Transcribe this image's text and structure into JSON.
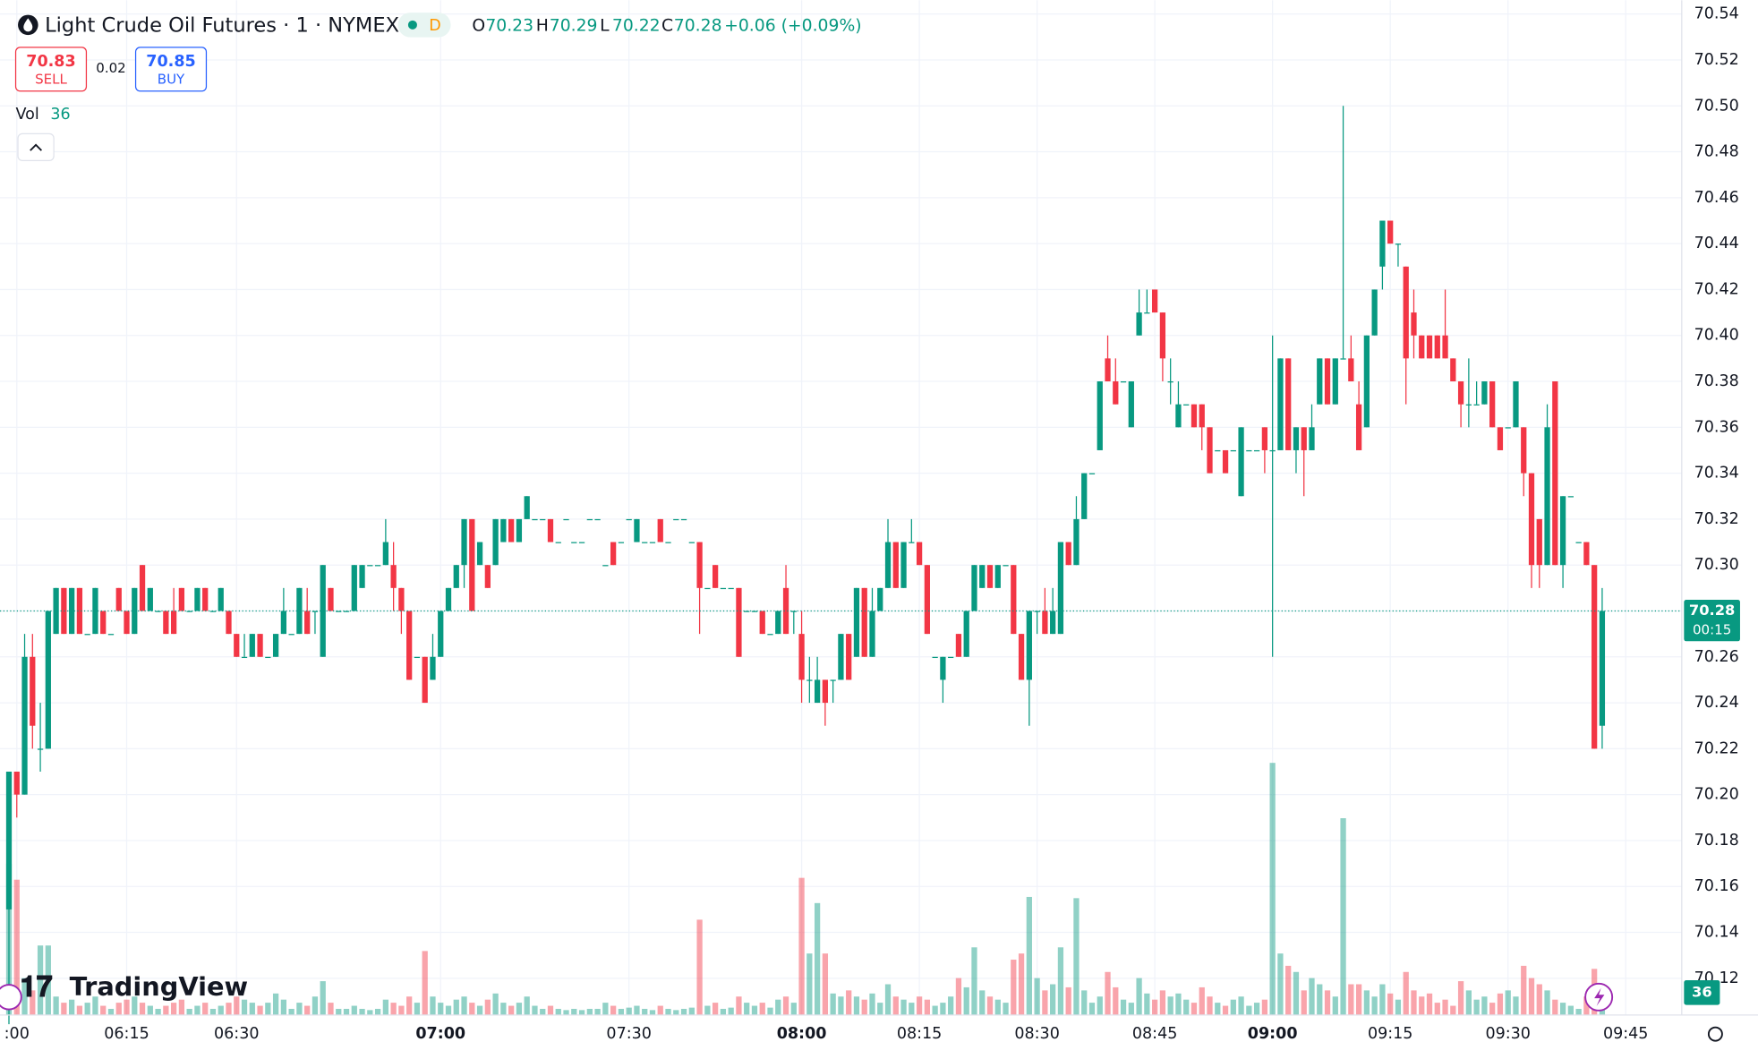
{
  "header": {
    "title": "Light Crude Oil Futures · 1 · NYMEX",
    "interval_badge": "D",
    "legend_labels": [
      "O",
      "H",
      "L",
      "C"
    ],
    "legend_values": [
      70.23,
      70.29,
      70.22,
      70.28
    ],
    "change": "+0.06 (+0.09%)",
    "sell_price": 70.83,
    "sell_label": "SELL",
    "spread": 0.02,
    "buy_price": 70.85,
    "buy_label": "BUY",
    "volume_label": "Vol",
    "countdown": "00:15",
    "logo": "TradingView"
  },
  "chart_data": {
    "type": "candlestick",
    "up_color": "#089981",
    "down_color": "#f23645",
    "grid": true,
    "ylim": [
      70.104,
      70.546
    ],
    "yticks": [
      70.54,
      70.52,
      {
        "value": 70.5,
        "label": "70.50"
      },
      70.48,
      70.46,
      70.44,
      70.42,
      {
        "value": 70.4,
        "label": "70.40"
      },
      70.38,
      70.36,
      70.34,
      70.32,
      {
        "value": 70.3,
        "label": "70.30"
      },
      70.28,
      70.26,
      70.24,
      70.22,
      {
        "value": 70.2,
        "label": "70.20"
      },
      70.18,
      70.16,
      70.14,
      70.12
    ],
    "xlim": [
      -1.14,
      213.14
    ],
    "xticks": [
      {
        "value": 1,
        "label": ":00"
      },
      {
        "value": 15,
        "label": "06:15"
      },
      {
        "value": 29,
        "label": "06:30"
      },
      {
        "value": 55,
        "label": "07:00"
      },
      {
        "value": 79,
        "label": "07:30"
      },
      {
        "value": 101,
        "label": "08:00"
      },
      {
        "value": 116,
        "label": "08:15"
      },
      {
        "value": 131,
        "label": "08:30"
      },
      {
        "value": 146,
        "label": "08:45"
      },
      {
        "value": 161,
        "label": "09:00"
      },
      {
        "value": 176,
        "label": "09:15"
      },
      {
        "value": 191,
        "label": "09:30"
      },
      {
        "value": 206,
        "label": "09:45"
      }
    ],
    "volume_lim": [
      0,
      1650
    ],
    "ohlc": [
      [
        70.15,
        70.21,
        70.1,
        70.21
      ],
      [
        70.21,
        70.21,
        70.19,
        70.2
      ],
      [
        70.2,
        70.27,
        70.2,
        70.26
      ],
      [
        70.26,
        70.27,
        70.22,
        70.23
      ],
      [
        70.22,
        70.24,
        70.21,
        70.22
      ],
      [
        70.22,
        70.28,
        70.22,
        70.28
      ],
      [
        70.27,
        70.29,
        70.27,
        70.29
      ],
      [
        70.29,
        70.29,
        70.27,
        70.27
      ],
      [
        70.27,
        70.29,
        70.27,
        70.29
      ],
      [
        70.29,
        70.29,
        70.27,
        70.27
      ],
      [
        70.27,
        70.27,
        70.27,
        70.27
      ],
      [
        70.27,
        70.29,
        70.27,
        70.29
      ],
      [
        70.28,
        70.28,
        70.27,
        70.27
      ],
      [
        70.27,
        70.27,
        70.27,
        70.27
      ],
      [
        70.29,
        70.29,
        70.28,
        70.28
      ],
      [
        70.28,
        70.28,
        70.27,
        70.27
      ],
      [
        70.27,
        70.29,
        70.27,
        70.29
      ],
      [
        70.3,
        70.3,
        70.28,
        70.28
      ],
      [
        70.28,
        70.29,
        70.28,
        70.29
      ],
      [
        70.28,
        70.28,
        70.28,
        70.28
      ],
      [
        70.28,
        70.28,
        70.27,
        70.27
      ],
      [
        70.28,
        70.29,
        70.27,
        70.27
      ],
      [
        70.29,
        70.29,
        70.28,
        70.28
      ],
      [
        70.28,
        70.28,
        70.28,
        70.28
      ],
      [
        70.28,
        70.29,
        70.28,
        70.29
      ],
      [
        70.29,
        70.29,
        70.28,
        70.28
      ],
      [
        70.28,
        70.28,
        70.28,
        70.28
      ],
      [
        70.28,
        70.29,
        70.28,
        70.29
      ],
      [
        70.28,
        70.28,
        70.27,
        70.27
      ],
      [
        70.27,
        70.27,
        70.26,
        70.26
      ],
      [
        70.26,
        70.27,
        70.26,
        70.26
      ],
      [
        70.26,
        70.27,
        70.26,
        70.27
      ],
      [
        70.27,
        70.27,
        70.26,
        70.26
      ],
      [
        70.26,
        70.26,
        70.26,
        70.26
      ],
      [
        70.26,
        70.27,
        70.26,
        70.27
      ],
      [
        70.27,
        70.29,
        70.27,
        70.28
      ],
      [
        70.27,
        70.27,
        70.27,
        70.27
      ],
      [
        70.27,
        70.29,
        70.27,
        70.29
      ],
      [
        70.28,
        70.29,
        70.27,
        70.27
      ],
      [
        70.28,
        70.28,
        70.27,
        70.28
      ],
      [
        70.26,
        70.3,
        70.26,
        70.3
      ],
      [
        70.29,
        70.29,
        70.28,
        70.28
      ],
      [
        70.28,
        70.28,
        70.28,
        70.28
      ],
      [
        70.28,
        70.28,
        70.28,
        70.28
      ],
      [
        70.28,
        70.3,
        70.28,
        70.3
      ],
      [
        70.29,
        70.3,
        70.29,
        70.3
      ],
      [
        70.3,
        70.3,
        70.3,
        70.3
      ],
      [
        70.3,
        70.3,
        70.3,
        70.3
      ],
      [
        70.3,
        70.32,
        70.3,
        70.31
      ],
      [
        70.3,
        70.31,
        70.28,
        70.29
      ],
      [
        70.29,
        70.29,
        70.27,
        70.28
      ],
      [
        70.28,
        70.28,
        70.25,
        70.25
      ],
      [
        70.26,
        70.26,
        70.26,
        70.26
      ],
      [
        70.26,
        70.26,
        70.24,
        70.24
      ],
      [
        70.25,
        70.27,
        70.25,
        70.26
      ],
      [
        70.26,
        70.28,
        70.26,
        70.28
      ],
      [
        70.28,
        70.29,
        70.28,
        70.29
      ],
      [
        70.29,
        70.3,
        70.29,
        70.3
      ],
      [
        70.3,
        70.32,
        70.29,
        70.32
      ],
      [
        70.32,
        70.32,
        70.28,
        70.28
      ],
      [
        70.3,
        70.31,
        70.3,
        70.31
      ],
      [
        70.3,
        70.3,
        70.29,
        70.29
      ],
      [
        70.3,
        70.32,
        70.3,
        70.32
      ],
      [
        70.31,
        70.32,
        70.31,
        70.32
      ],
      [
        70.32,
        70.32,
        70.31,
        70.31
      ],
      [
        70.31,
        70.32,
        70.31,
        70.32
      ],
      [
        70.32,
        70.33,
        70.32,
        70.33
      ],
      [
        70.32,
        70.32,
        70.32,
        70.32
      ],
      [
        70.32,
        70.32,
        70.32,
        70.32
      ],
      [
        70.32,
        70.32,
        70.31,
        70.31
      ],
      [
        70.31,
        70.31,
        70.31,
        70.31
      ],
      [
        70.32,
        70.32,
        70.32,
        70.32
      ],
      [
        70.31,
        70.31,
        70.31,
        70.31
      ],
      [
        70.31,
        70.31,
        70.31,
        70.31
      ],
      [
        70.32,
        70.32,
        70.32,
        70.32
      ],
      [
        70.32,
        70.32,
        70.32,
        70.32
      ],
      [
        70.3,
        70.3,
        70.3,
        70.3
      ],
      [
        70.31,
        70.31,
        70.3,
        70.3
      ],
      [
        70.31,
        70.31,
        70.31,
        70.31
      ],
      [
        70.32,
        70.32,
        70.32,
        70.32
      ],
      [
        70.31,
        70.32,
        70.31,
        70.32
      ],
      [
        70.31,
        70.31,
        70.31,
        70.31
      ],
      [
        70.31,
        70.31,
        70.31,
        70.31
      ],
      [
        70.32,
        70.32,
        70.31,
        70.31
      ],
      [
        70.31,
        70.31,
        70.31,
        70.31
      ],
      [
        70.32,
        70.32,
        70.32,
        70.32
      ],
      [
        70.32,
        70.32,
        70.32,
        70.32
      ],
      [
        70.31,
        70.31,
        70.31,
        70.31
      ],
      [
        70.31,
        70.31,
        70.27,
        70.29
      ],
      [
        70.29,
        70.29,
        70.29,
        70.29
      ],
      [
        70.3,
        70.3,
        70.29,
        70.29
      ],
      [
        70.29,
        70.29,
        70.29,
        70.29
      ],
      [
        70.29,
        70.29,
        70.29,
        70.29
      ],
      [
        70.29,
        70.29,
        70.26,
        70.26
      ],
      [
        70.28,
        70.28,
        70.28,
        70.28
      ],
      [
        70.28,
        70.28,
        70.28,
        70.28
      ],
      [
        70.28,
        70.28,
        70.27,
        70.27
      ],
      [
        70.27,
        70.27,
        70.27,
        70.27
      ],
      [
        70.27,
        70.28,
        70.27,
        70.28
      ],
      [
        70.29,
        70.3,
        70.27,
        70.27
      ],
      [
        70.28,
        70.28,
        70.27,
        70.28
      ],
      [
        70.27,
        70.28,
        70.24,
        70.25
      ],
      [
        70.25,
        70.26,
        70.24,
        70.25
      ],
      [
        70.24,
        70.26,
        70.24,
        70.25
      ],
      [
        70.25,
        70.25,
        70.23,
        70.24
      ],
      [
        70.25,
        70.25,
        70.24,
        70.25
      ],
      [
        70.25,
        70.27,
        70.25,
        70.27
      ],
      [
        70.27,
        70.27,
        70.25,
        70.25
      ],
      [
        70.26,
        70.29,
        70.26,
        70.29
      ],
      [
        70.29,
        70.29,
        70.26,
        70.26
      ],
      [
        70.26,
        70.29,
        70.26,
        70.28
      ],
      [
        70.28,
        70.29,
        70.28,
        70.29
      ],
      [
        70.29,
        70.32,
        70.29,
        70.31
      ],
      [
        70.31,
        70.31,
        70.29,
        70.29
      ],
      [
        70.29,
        70.31,
        70.29,
        70.31
      ],
      [
        70.31,
        70.32,
        70.31,
        70.31
      ],
      [
        70.31,
        70.31,
        70.3,
        70.3
      ],
      [
        70.3,
        70.3,
        70.27,
        70.27
      ],
      [
        70.26,
        70.26,
        70.26,
        70.26
      ],
      [
        70.25,
        70.26,
        70.24,
        70.26
      ],
      [
        70.26,
        70.26,
        70.26,
        70.26
      ],
      [
        70.27,
        70.27,
        70.26,
        70.26
      ],
      [
        70.26,
        70.28,
        70.26,
        70.28
      ],
      [
        70.28,
        70.3,
        70.28,
        70.3
      ],
      [
        70.29,
        70.3,
        70.29,
        70.3
      ],
      [
        70.3,
        70.3,
        70.29,
        70.29
      ],
      [
        70.29,
        70.3,
        70.29,
        70.3
      ],
      [
        70.3,
        70.3,
        70.3,
        70.3
      ],
      [
        70.3,
        70.3,
        70.27,
        70.27
      ],
      [
        70.27,
        70.27,
        70.25,
        70.25
      ],
      [
        70.25,
        70.28,
        70.23,
        70.28
      ],
      [
        70.28,
        70.28,
        70.27,
        70.28
      ],
      [
        70.28,
        70.29,
        70.27,
        70.27
      ],
      [
        70.27,
        70.29,
        70.27,
        70.28
      ],
      [
        70.27,
        70.31,
        70.27,
        70.31
      ],
      [
        70.31,
        70.31,
        70.3,
        70.3
      ],
      [
        70.3,
        70.33,
        70.3,
        70.32
      ],
      [
        70.32,
        70.34,
        70.32,
        70.34
      ],
      [
        70.34,
        70.34,
        70.34,
        70.34
      ],
      [
        70.35,
        70.38,
        70.35,
        70.38
      ],
      [
        70.39,
        70.4,
        70.38,
        70.38
      ],
      [
        70.38,
        70.39,
        70.37,
        70.37
      ],
      [
        70.38,
        70.38,
        70.38,
        70.38
      ],
      [
        70.36,
        70.38,
        70.36,
        70.38
      ],
      [
        70.4,
        70.42,
        70.4,
        70.41
      ],
      [
        70.41,
        70.42,
        70.41,
        70.41
      ],
      [
        70.42,
        70.42,
        70.41,
        70.41
      ],
      [
        70.41,
        70.41,
        70.38,
        70.39
      ],
      [
        70.38,
        70.39,
        70.37,
        70.38
      ],
      [
        70.36,
        70.38,
        70.36,
        70.37
      ],
      [
        70.37,
        70.37,
        70.37,
        70.37
      ],
      [
        70.37,
        70.37,
        70.36,
        70.36
      ],
      [
        70.37,
        70.37,
        70.35,
        70.36
      ],
      [
        70.36,
        70.36,
        70.34,
        70.34
      ],
      [
        70.35,
        70.35,
        70.35,
        70.35
      ],
      [
        70.35,
        70.35,
        70.34,
        70.34
      ],
      [
        70.35,
        70.35,
        70.35,
        70.35
      ],
      [
        70.33,
        70.36,
        70.33,
        70.36
      ],
      [
        70.35,
        70.35,
        70.35,
        70.35
      ],
      [
        70.35,
        70.35,
        70.35,
        70.35
      ],
      [
        70.36,
        70.36,
        70.34,
        70.35
      ],
      [
        70.35,
        70.4,
        70.26,
        70.35
      ],
      [
        70.35,
        70.39,
        70.35,
        70.39
      ],
      [
        70.39,
        70.39,
        70.35,
        70.35
      ],
      [
        70.35,
        70.36,
        70.34,
        70.36
      ],
      [
        70.36,
        70.36,
        70.33,
        70.35
      ],
      [
        70.35,
        70.37,
        70.35,
        70.36
      ],
      [
        70.37,
        70.39,
        70.37,
        70.39
      ],
      [
        70.39,
        70.39,
        70.37,
        70.37
      ],
      [
        70.37,
        70.39,
        70.37,
        70.39
      ],
      [
        70.39,
        70.5,
        70.39,
        70.39
      ],
      [
        70.39,
        70.4,
        70.38,
        70.38
      ],
      [
        70.37,
        70.38,
        70.35,
        70.35
      ],
      [
        70.36,
        70.4,
        70.36,
        70.4
      ],
      [
        70.4,
        70.42,
        70.4,
        70.42
      ],
      [
        70.43,
        70.45,
        70.42,
        70.45
      ],
      [
        70.45,
        70.45,
        70.44,
        70.44
      ],
      [
        70.44,
        70.44,
        70.43,
        70.44
      ],
      [
        70.43,
        70.43,
        70.37,
        70.39
      ],
      [
        70.41,
        70.42,
        70.39,
        70.4
      ],
      [
        70.4,
        70.4,
        70.39,
        70.39
      ],
      [
        70.4,
        70.4,
        70.39,
        70.39
      ],
      [
        70.4,
        70.4,
        70.39,
        70.39
      ],
      [
        70.4,
        70.42,
        70.39,
        70.39
      ],
      [
        70.39,
        70.39,
        70.38,
        70.38
      ],
      [
        70.38,
        70.38,
        70.36,
        70.37
      ],
      [
        70.37,
        70.39,
        70.36,
        70.37
      ],
      [
        70.37,
        70.38,
        70.37,
        70.37
      ],
      [
        70.37,
        70.38,
        70.37,
        70.38
      ],
      [
        70.38,
        70.38,
        70.36,
        70.36
      ],
      [
        70.36,
        70.36,
        70.35,
        70.35
      ],
      [
        70.36,
        70.36,
        70.36,
        70.36
      ],
      [
        70.36,
        70.38,
        70.36,
        70.38
      ],
      [
        70.36,
        70.36,
        70.33,
        70.34
      ],
      [
        70.34,
        70.34,
        70.29,
        70.3
      ],
      [
        70.32,
        70.32,
        70.29,
        70.3
      ],
      [
        70.3,
        70.37,
        70.3,
        70.36
      ],
      [
        70.38,
        70.38,
        70.3,
        70.3
      ],
      [
        70.3,
        70.33,
        70.29,
        70.33
      ],
      [
        70.33,
        70.33,
        70.33,
        70.33
      ],
      [
        70.31,
        70.31,
        70.31,
        70.31
      ],
      [
        70.31,
        70.31,
        70.3,
        70.3
      ],
      [
        70.3,
        70.3,
        70.22,
        70.22
      ],
      [
        70.23,
        70.29,
        70.22,
        70.28
      ]
    ],
    "volume": [
      246,
      220,
      60,
      40,
      113,
      113,
      30,
      20,
      25,
      15,
      20,
      30,
      15,
      10,
      20,
      25,
      30,
      20,
      15,
      10,
      15,
      20,
      25,
      10,
      15,
      20,
      10,
      15,
      20,
      30,
      25,
      20,
      15,
      20,
      35,
      25,
      10,
      20,
      15,
      30,
      55,
      20,
      10,
      10,
      15,
      10,
      8,
      10,
      25,
      20,
      15,
      30,
      20,
      104,
      30,
      20,
      15,
      25,
      30,
      20,
      15,
      25,
      35,
      20,
      15,
      20,
      30,
      15,
      10,
      15,
      10,
      8,
      10,
      8,
      10,
      10,
      20,
      15,
      10,
      12,
      15,
      10,
      8,
      15,
      10,
      8,
      10,
      12,
      155,
      15,
      20,
      10,
      12,
      30,
      20,
      15,
      20,
      12,
      25,
      30,
      20,
      223,
      100,
      182,
      100,
      35,
      30,
      40,
      30,
      25,
      35,
      20,
      50,
      30,
      25,
      20,
      30,
      25,
      15,
      20,
      30,
      60,
      45,
      110,
      40,
      30,
      25,
      20,
      90,
      100,
      192,
      60,
      40,
      50,
      110,
      45,
      190,
      40,
      20,
      30,
      70,
      45,
      25,
      20,
      60,
      35,
      25,
      40,
      30,
      35,
      25,
      20,
      45,
      30,
      20,
      15,
      25,
      30,
      15,
      20,
      25,
      410,
      100,
      80,
      70,
      40,
      60,
      50,
      40,
      30,
      320,
      50,
      50,
      40,
      30,
      50,
      35,
      25,
      70,
      40,
      30,
      35,
      20,
      25,
      15,
      55,
      40,
      25,
      30,
      20,
      35,
      40,
      30,
      80,
      60,
      50,
      40,
      25,
      20,
      15,
      10,
      30,
      75,
      36
    ]
  }
}
